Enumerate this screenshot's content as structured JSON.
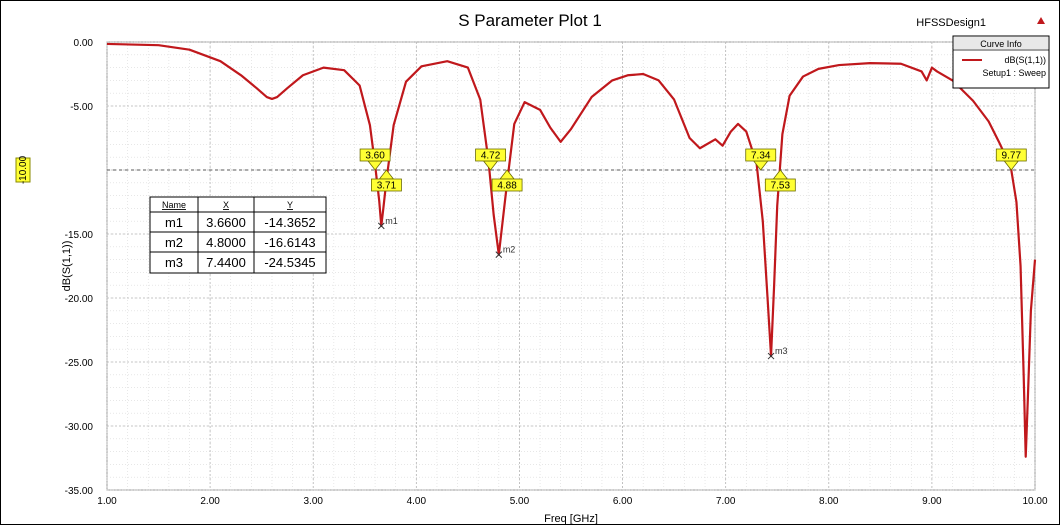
{
  "window": {
    "title": "S Parameter Plot 1",
    "design_name": "HFSSDesign1",
    "marker_icon": "triangle-up-icon"
  },
  "legend": {
    "title": "Curve Info",
    "entries": [
      {
        "name": "dB(S(1,1))",
        "sub": "Setup1 : Sweep",
        "color": "#c0181c"
      }
    ]
  },
  "marker_table": {
    "headers": [
      "Name",
      "X",
      "Y"
    ],
    "rows": [
      [
        "m1",
        "3.6600",
        "-14.3652"
      ],
      [
        "m2",
        "4.8000",
        "-16.6143"
      ],
      [
        "m3",
        "7.4400",
        "-24.5345"
      ]
    ]
  },
  "chart_data": {
    "type": "line",
    "title": "S Parameter Plot 1",
    "xlabel": "Freq [GHz]",
    "ylabel": "dB(S(1,1))",
    "xlim": [
      1.0,
      10.0
    ],
    "ylim": [
      -35.0,
      0.0
    ],
    "x_ticks": [
      "1.00",
      "2.00",
      "3.00",
      "4.00",
      "5.00",
      "6.00",
      "7.00",
      "8.00",
      "9.00",
      "10.00"
    ],
    "y_ticks": [
      "0.00",
      "-5.00",
      "-10.00",
      "-15.00",
      "-20.00",
      "-25.00",
      "-30.00",
      "-35.00"
    ],
    "grid": true,
    "legend_position": "top-right",
    "reference_line": {
      "y": -10.0,
      "label": "-10.00"
    },
    "series": [
      {
        "name": "dB(S(1,1))",
        "color": "#c0181c",
        "x": [
          1.0,
          1.5,
          1.8,
          2.1,
          2.3,
          2.45,
          2.55,
          2.6,
          2.65,
          2.75,
          2.9,
          3.1,
          3.3,
          3.45,
          3.55,
          3.6,
          3.64,
          3.66,
          3.68,
          3.71,
          3.78,
          3.9,
          4.05,
          4.3,
          4.5,
          4.62,
          4.7,
          4.75,
          4.8,
          4.84,
          4.88,
          4.95,
          5.05,
          5.2,
          5.3,
          5.4,
          5.5,
          5.7,
          5.9,
          6.05,
          6.2,
          6.35,
          6.5,
          6.65,
          6.75,
          6.9,
          6.97,
          7.05,
          7.12,
          7.2,
          7.3,
          7.36,
          7.41,
          7.44,
          7.47,
          7.5,
          7.55,
          7.62,
          7.75,
          7.9,
          8.1,
          8.4,
          8.7,
          8.9,
          8.95,
          9.0,
          9.05,
          9.2,
          9.4,
          9.55,
          9.65,
          9.72,
          9.77,
          9.82,
          9.86,
          9.89,
          9.91,
          9.93,
          9.96,
          10.0
        ],
        "y": [
          -0.15,
          -0.25,
          -0.6,
          -1.5,
          -2.6,
          -3.6,
          -4.3,
          -4.45,
          -4.3,
          -3.6,
          -2.6,
          -2.0,
          -2.2,
          -3.4,
          -6.5,
          -9.6,
          -12.4,
          -14.37,
          -13.0,
          -10.8,
          -6.5,
          -3.1,
          -1.9,
          -1.5,
          -2.0,
          -4.5,
          -9.3,
          -13.5,
          -16.61,
          -13.8,
          -11.0,
          -6.4,
          -4.7,
          -5.3,
          -6.7,
          -7.8,
          -6.8,
          -4.3,
          -3.0,
          -2.6,
          -2.5,
          -3.0,
          -4.5,
          -7.5,
          -8.3,
          -7.6,
          -8.1,
          -7.0,
          -6.4,
          -7.0,
          -9.5,
          -14.0,
          -20.5,
          -24.53,
          -19.0,
          -12.8,
          -7.2,
          -4.2,
          -2.7,
          -2.1,
          -1.8,
          -1.65,
          -1.7,
          -2.3,
          -3.0,
          -2.0,
          -2.3,
          -3.0,
          -4.6,
          -6.2,
          -7.8,
          -9.0,
          -10.0,
          -12.5,
          -17.5,
          -26.0,
          -32.4,
          -28.0,
          -21.0,
          -17.0
        ]
      }
    ],
    "markers": [
      {
        "name": "m1",
        "x": 3.66,
        "y": -14.3652
      },
      {
        "name": "m2",
        "x": 4.8,
        "y": -16.6143
      },
      {
        "name": "m3",
        "x": 7.44,
        "y": -24.5345
      }
    ],
    "crossings": [
      {
        "label": "3.60",
        "x": 3.6,
        "type": "down"
      },
      {
        "label": "3.71",
        "x": 3.71,
        "type": "up"
      },
      {
        "label": "4.72",
        "x": 4.72,
        "type": "down"
      },
      {
        "label": "4.88",
        "x": 4.88,
        "type": "up"
      },
      {
        "label": "7.34",
        "x": 7.34,
        "type": "down"
      },
      {
        "label": "7.53",
        "x": 7.53,
        "type": "up"
      },
      {
        "label": "9.77",
        "x": 9.77,
        "type": "down"
      }
    ]
  }
}
